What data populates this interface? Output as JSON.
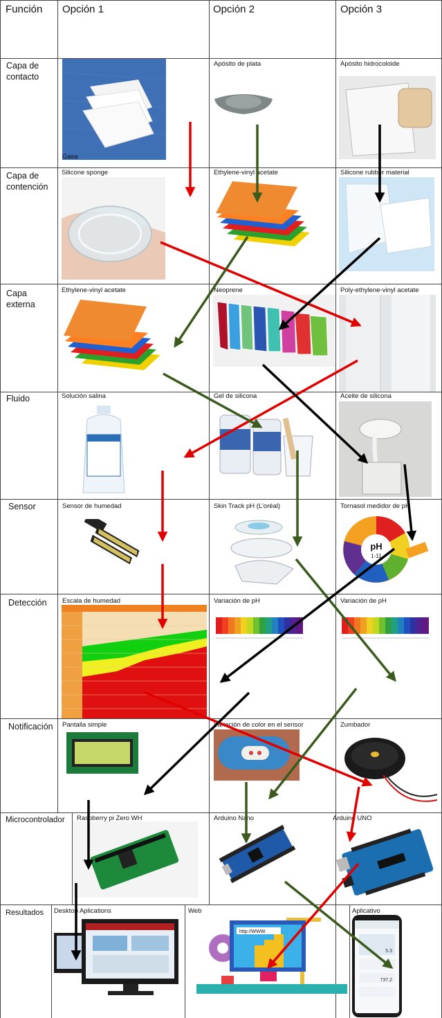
{
  "headers": {
    "funcion": "Función",
    "opcion1": "Opción 1",
    "opcion2": "Opción 2",
    "opcion3": "Opción 3"
  },
  "rows": [
    {
      "name": "Capa de contacto",
      "options": [
        "Gasa",
        "Apósito de plata",
        "Apósito hidrocoloide"
      ]
    },
    {
      "name": "Capa de contención",
      "options": [
        "Silicone sponge",
        "Ethylene-vinyl acetate",
        "Silicone rubber material"
      ]
    },
    {
      "name": "Capa externa",
      "options": [
        "Ethylene-vinyl acetate",
        "Neoprene",
        "Poly-ethylene-vinyl acetate"
      ]
    },
    {
      "name": "Fluido",
      "options": [
        "Solución salina",
        "Gel de silicona",
        "Aceite de silicona"
      ]
    },
    {
      "name": "Sensor",
      "options": [
        "Sensor de humedad",
        "Skin Track pH (L’oréal)",
        "Tornasol medidor de pH"
      ]
    },
    {
      "name": "Detección",
      "options": [
        "Escala de humedad",
        "Variación de pH",
        "Variación de pH"
      ]
    },
    {
      "name": "Notificación",
      "options": [
        "Pantalla simple",
        "Variación de color en el sensor",
        "Zumbador"
      ]
    },
    {
      "name": "Microcontrolador",
      "options": [
        "Raspberry pi Zero WH",
        "Arduino Nano",
        "Arduino UNO"
      ]
    },
    {
      "name": "Resultados",
      "options": [
        "Desktop Aplications",
        "Web",
        "Aplicativo"
      ]
    }
  ],
  "images": {
    "web_url": "http://WWW.",
    "phone_value1": "5.3",
    "phone_value2": "737.2",
    "ph_strip_label": "pH",
    "ph_strip_range": "1-11"
  },
  "colors": {
    "red": "#e00000",
    "green": "#3a5a1e",
    "black": "#000000",
    "grid": "#444444"
  },
  "icons": [
    "gauze-image",
    "silver-dressing-image",
    "hydrocolloid-image",
    "silicone-sponge-image",
    "eva-foam-image",
    "silicone-rubber-image",
    "neoprene-image",
    "poly-eva-film-image",
    "saline-bottle-image",
    "silicone-gel-image",
    "silicone-oil-image",
    "moisture-sensor-image",
    "skin-track-ph-image",
    "litmus-roll-image",
    "humidity-scale-image",
    "ph-scale-image",
    "lcd-display-image",
    "color-sensor-image",
    "buzzer-image",
    "raspberry-pi-image",
    "arduino-nano-image",
    "arduino-uno-image",
    "desktop-monitors-image",
    "web-illustration-image",
    "smartphone-app-image"
  ]
}
